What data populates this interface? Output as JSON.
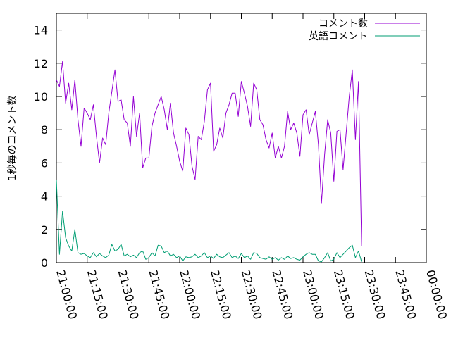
{
  "chart_data": {
    "type": "line",
    "title": "",
    "xlabel": "",
    "ylabel": "1秒毎のコメント数",
    "xlim_minutes": [
      0,
      180
    ],
    "ylim": [
      0,
      15
    ],
    "xticks": [
      {
        "minute": 0,
        "label": "21:00:00"
      },
      {
        "minute": 15,
        "label": "21:15:00"
      },
      {
        "minute": 30,
        "label": "21:30:00"
      },
      {
        "minute": 45,
        "label": "21:45:00"
      },
      {
        "minute": 60,
        "label": "22:00:00"
      },
      {
        "minute": 75,
        "label": "22:15:00"
      },
      {
        "minute": 90,
        "label": "22:30:00"
      },
      {
        "minute": 105,
        "label": "22:45:00"
      },
      {
        "minute": 120,
        "label": "23:00:00"
      },
      {
        "minute": 135,
        "label": "23:15:00"
      },
      {
        "minute": 150,
        "label": "23:30:00"
      },
      {
        "minute": 165,
        "label": "23:45:00"
      },
      {
        "minute": 180,
        "label": "00:00:00"
      }
    ],
    "yticks": [
      0,
      2,
      4,
      6,
      8,
      10,
      12,
      14
    ],
    "grid": false,
    "legend_position": "top-right",
    "series": [
      {
        "name": "コメント数",
        "color": "#9400d3",
        "points": [
          [
            0,
            11.0
          ],
          [
            1.5,
            10.6
          ],
          [
            3,
            12.1
          ],
          [
            4.5,
            9.6
          ],
          [
            6,
            10.8
          ],
          [
            7.5,
            9.2
          ],
          [
            9,
            11.0
          ],
          [
            10.5,
            8.6
          ],
          [
            12,
            7.0
          ],
          [
            13.5,
            9.3
          ],
          [
            15,
            9.0
          ],
          [
            16.5,
            8.6
          ],
          [
            18,
            9.5
          ],
          [
            19.5,
            7.6
          ],
          [
            21,
            6.0
          ],
          [
            22.5,
            7.5
          ],
          [
            24,
            7.1
          ],
          [
            25.5,
            9.0
          ],
          [
            27,
            10.3
          ],
          [
            28.5,
            11.6
          ],
          [
            30,
            9.7
          ],
          [
            31.5,
            9.8
          ],
          [
            33,
            8.6
          ],
          [
            34.5,
            8.4
          ],
          [
            36,
            7.0
          ],
          [
            37.5,
            10.0
          ],
          [
            39,
            7.6
          ],
          [
            40.5,
            9.0
          ],
          [
            42,
            5.7
          ],
          [
            43.5,
            6.3
          ],
          [
            45,
            6.3
          ],
          [
            46.5,
            8.2
          ],
          [
            48,
            9.0
          ],
          [
            49.5,
            9.5
          ],
          [
            51,
            10.0
          ],
          [
            52.5,
            9.2
          ],
          [
            54,
            8.0
          ],
          [
            55.5,
            9.6
          ],
          [
            57,
            7.8
          ],
          [
            58.5,
            7.0
          ],
          [
            60,
            6.1
          ],
          [
            61.5,
            5.5
          ],
          [
            63,
            8.1
          ],
          [
            64.5,
            7.7
          ],
          [
            66,
            5.8
          ],
          [
            67.5,
            5.0
          ],
          [
            69,
            7.6
          ],
          [
            70.5,
            7.4
          ],
          [
            72,
            8.5
          ],
          [
            73.5,
            10.4
          ],
          [
            75,
            10.8
          ],
          [
            76.5,
            6.7
          ],
          [
            78,
            7.1
          ],
          [
            79.5,
            8.1
          ],
          [
            81,
            7.5
          ],
          [
            82.5,
            9.0
          ],
          [
            84,
            9.5
          ],
          [
            85.5,
            10.2
          ],
          [
            87,
            10.2
          ],
          [
            88.5,
            8.8
          ],
          [
            90,
            10.9
          ],
          [
            91.5,
            10.2
          ],
          [
            93,
            9.4
          ],
          [
            94.5,
            8.2
          ],
          [
            96,
            10.8
          ],
          [
            97.5,
            10.4
          ],
          [
            99,
            8.6
          ],
          [
            100.5,
            8.3
          ],
          [
            102,
            7.4
          ],
          [
            103.5,
            6.9
          ],
          [
            105,
            7.8
          ],
          [
            106.5,
            6.3
          ],
          [
            108,
            7.0
          ],
          [
            109.5,
            6.3
          ],
          [
            111,
            7.0
          ],
          [
            112.5,
            9.1
          ],
          [
            114,
            8.0
          ],
          [
            115.5,
            8.4
          ],
          [
            117,
            7.8
          ],
          [
            118.5,
            6.4
          ],
          [
            120,
            8.9
          ],
          [
            121.5,
            9.2
          ],
          [
            123,
            7.7
          ],
          [
            124.5,
            8.4
          ],
          [
            126,
            9.1
          ],
          [
            127.5,
            7.1
          ],
          [
            129,
            3.6
          ],
          [
            130.5,
            6.5
          ],
          [
            132,
            8.6
          ],
          [
            133.5,
            7.8
          ],
          [
            135,
            4.9
          ],
          [
            136.5,
            7.9
          ],
          [
            138,
            8.0
          ],
          [
            139.5,
            5.6
          ],
          [
            141,
            7.8
          ],
          [
            142.5,
            10.0
          ],
          [
            144,
            11.6
          ],
          [
            145.5,
            7.4
          ],
          [
            147,
            10.9
          ],
          [
            148.5,
            1.0
          ]
        ]
      },
      {
        "name": "英語コメント",
        "color": "#009e73",
        "points": [
          [
            0,
            5.0
          ],
          [
            1.5,
            0.5
          ],
          [
            3,
            3.1
          ],
          [
            4.5,
            1.5
          ],
          [
            6,
            1.0
          ],
          [
            7.5,
            0.7
          ],
          [
            9,
            2.0
          ],
          [
            10.5,
            0.6
          ],
          [
            12,
            0.5
          ],
          [
            13.5,
            0.55
          ],
          [
            15,
            0.4
          ],
          [
            16.5,
            0.3
          ],
          [
            18,
            0.6
          ],
          [
            19.5,
            0.35
          ],
          [
            21,
            0.55
          ],
          [
            22.5,
            0.4
          ],
          [
            24,
            0.3
          ],
          [
            25.5,
            0.45
          ],
          [
            27,
            1.1
          ],
          [
            28.5,
            0.7
          ],
          [
            30,
            0.8
          ],
          [
            31.5,
            1.1
          ],
          [
            33,
            0.4
          ],
          [
            34.5,
            0.5
          ],
          [
            36,
            0.35
          ],
          [
            37.5,
            0.45
          ],
          [
            39,
            0.3
          ],
          [
            40.5,
            0.6
          ],
          [
            42,
            0.7
          ],
          [
            43.5,
            0.2
          ],
          [
            45,
            0.3
          ],
          [
            46.5,
            0.6
          ],
          [
            48,
            0.4
          ],
          [
            49.5,
            1.05
          ],
          [
            51,
            1.0
          ],
          [
            52.5,
            0.6
          ],
          [
            54,
            0.7
          ],
          [
            55.5,
            0.4
          ],
          [
            57,
            0.5
          ],
          [
            58.5,
            0.3
          ],
          [
            60,
            0.4
          ],
          [
            61.5,
            0.1
          ],
          [
            63,
            0.35
          ],
          [
            64.5,
            0.3
          ],
          [
            66,
            0.35
          ],
          [
            67.5,
            0.5
          ],
          [
            69,
            0.3
          ],
          [
            70.5,
            0.4
          ],
          [
            72,
            0.6
          ],
          [
            73.5,
            0.3
          ],
          [
            75,
            0.4
          ],
          [
            76.5,
            0.25
          ],
          [
            78,
            0.5
          ],
          [
            79.5,
            0.35
          ],
          [
            81,
            0.3
          ],
          [
            82.5,
            0.45
          ],
          [
            84,
            0.6
          ],
          [
            85.5,
            0.3
          ],
          [
            87,
            0.4
          ],
          [
            88.5,
            0.25
          ],
          [
            90,
            0.55
          ],
          [
            91.5,
            0.3
          ],
          [
            93,
            0.4
          ],
          [
            94.5,
            0.2
          ],
          [
            96,
            0.6
          ],
          [
            97.5,
            0.55
          ],
          [
            99,
            0.3
          ],
          [
            100.5,
            0.25
          ],
          [
            102,
            0.2
          ],
          [
            103.5,
            0.35
          ],
          [
            105,
            0.2
          ],
          [
            106.5,
            0.3
          ],
          [
            108,
            0.15
          ],
          [
            109.5,
            0.3
          ],
          [
            111,
            0.2
          ],
          [
            112.5,
            0.4
          ],
          [
            114,
            0.25
          ],
          [
            115.5,
            0.3
          ],
          [
            117,
            0.2
          ],
          [
            118.5,
            0.15
          ],
          [
            120,
            0.35
          ],
          [
            121.5,
            0.5
          ],
          [
            123,
            0.6
          ],
          [
            124.5,
            0.5
          ],
          [
            126,
            0.5
          ],
          [
            127.5,
            0.1
          ],
          [
            129,
            0.05
          ],
          [
            130.5,
            0.3
          ],
          [
            132,
            0.6
          ],
          [
            133.5,
            0.1
          ],
          [
            135,
            0.2
          ],
          [
            136.5,
            0.6
          ],
          [
            138,
            0.3
          ],
          [
            139.5,
            0.5
          ],
          [
            141,
            0.7
          ],
          [
            142.5,
            0.9
          ],
          [
            144,
            1.05
          ],
          [
            145.5,
            0.3
          ],
          [
            147,
            0.7
          ],
          [
            148.5,
            0.05
          ]
        ]
      }
    ]
  }
}
